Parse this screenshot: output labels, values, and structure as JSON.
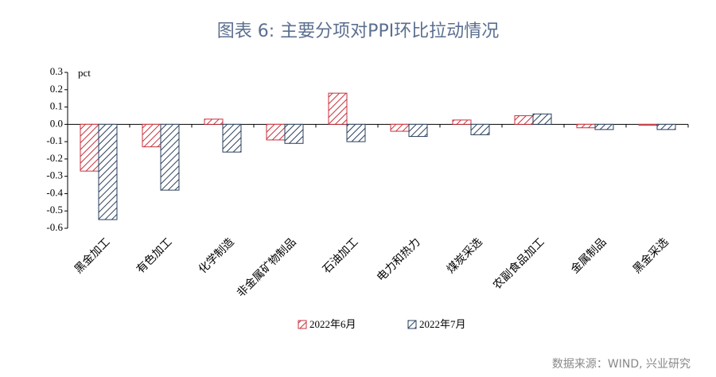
{
  "chart_data": {
    "type": "bar",
    "title": "图表 6:      主要分项对PPI环比拉动情况",
    "y_label": "pct",
    "source": "数据来源：WIND, 兴业研究",
    "categories": [
      "黑金加工",
      "有色加工",
      "化学制造",
      "非金属矿物制品",
      "石油加工",
      "电力和热力",
      "煤炭采选",
      "农副食品加工",
      "金属制品",
      "黑金采选"
    ],
    "series": [
      {
        "name": "2022年6月",
        "color": "#c8323c",
        "values": [
          -0.27,
          -0.13,
          0.03,
          -0.09,
          0.18,
          -0.04,
          0.025,
          0.05,
          -0.02,
          -0.005
        ]
      },
      {
        "name": "2022年7月",
        "color": "#2b3f5c",
        "values": [
          -0.55,
          -0.38,
          -0.16,
          -0.11,
          -0.1,
          -0.07,
          -0.06,
          0.06,
          -0.03,
          -0.03
        ]
      }
    ],
    "ylim": [
      -0.6,
      0.3
    ],
    "yticks": [
      -0.6,
      -0.5,
      -0.4,
      -0.3,
      -0.2,
      -0.1,
      {
        "value": 0,
        "label": "0.0"
      },
      0.1,
      0.2,
      0.3
    ]
  }
}
